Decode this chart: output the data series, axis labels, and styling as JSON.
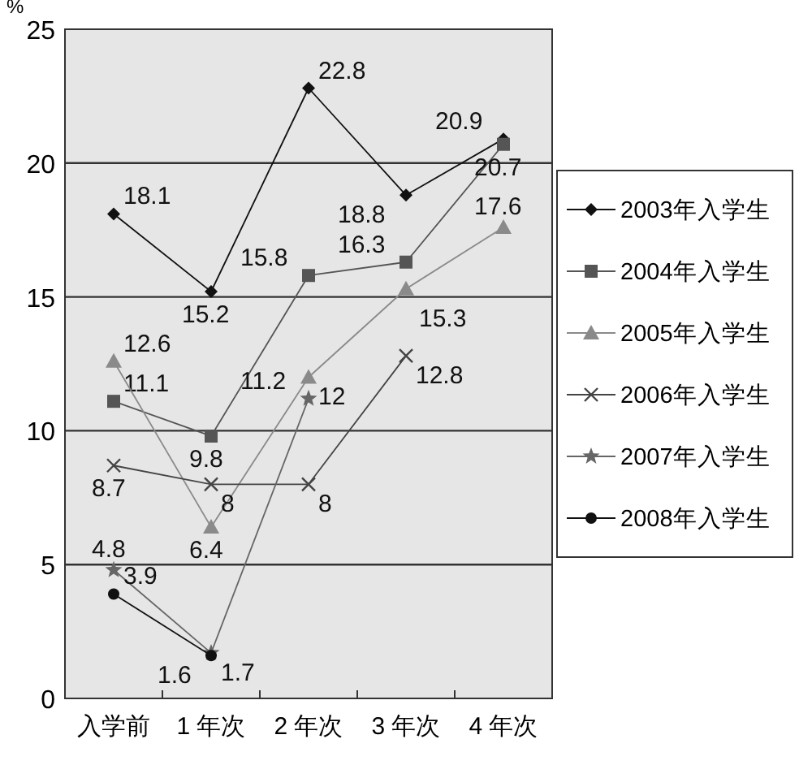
{
  "chart_data": {
    "type": "line",
    "ylabel": "%",
    "categories": [
      "入学前",
      "1 年次",
      "2 年次",
      "3 年次",
      "4 年次"
    ],
    "ylim": [
      0,
      25
    ],
    "yticks": [
      0,
      5,
      10,
      15,
      20,
      25
    ],
    "grid": "y",
    "legend": "right",
    "data_labels": true,
    "series": [
      {
        "name": "2003年入学生",
        "color": "#111111",
        "marker": "diamond",
        "values": [
          18.1,
          15.2,
          22.8,
          18.8,
          20.9
        ]
      },
      {
        "name": "2004年入学生",
        "color": "#555555",
        "marker": "square",
        "values": [
          11.1,
          9.8,
          15.8,
          16.3,
          20.7
        ]
      },
      {
        "name": "2005年入学生",
        "color": "#8a8a8a",
        "marker": "triangle",
        "values": [
          12.6,
          6.4,
          12,
          15.3,
          17.6
        ]
      },
      {
        "name": "2006年入学生",
        "color": "#444444",
        "marker": "cross",
        "values": [
          8.7,
          8,
          8,
          12.8,
          null
        ]
      },
      {
        "name": "2007年入学生",
        "color": "#666666",
        "marker": "star",
        "values": [
          4.8,
          1.7,
          11.2,
          null,
          null
        ]
      },
      {
        "name": "2008年入学生",
        "color": "#111111",
        "marker": "circle",
        "values": [
          3.9,
          1.6,
          null,
          null,
          null
        ]
      }
    ]
  }
}
